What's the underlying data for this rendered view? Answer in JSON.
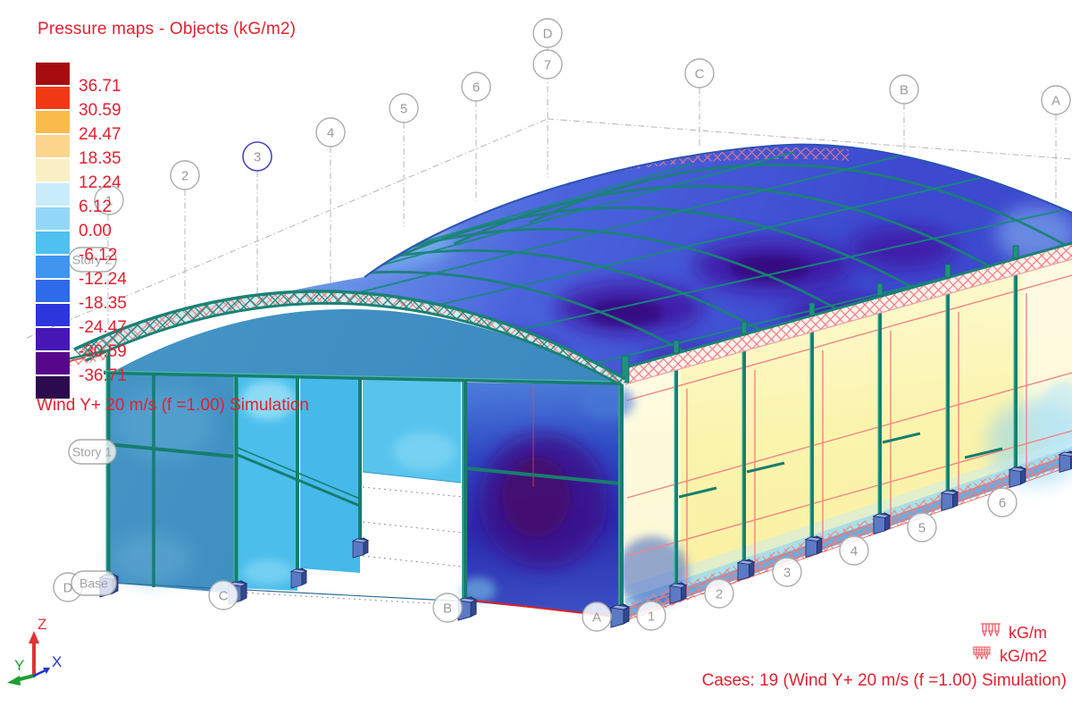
{
  "title": "Pressure maps - Objects (kG/m2)",
  "legend": {
    "values": [
      "36.71",
      "30.59",
      "24.47",
      "18.35",
      "12.24",
      "6.12",
      "0.00",
      "-6.12",
      "-12.24",
      "-18.35",
      "-24.47",
      "-30.59",
      "-36.71"
    ],
    "colors": [
      "#a50d10",
      "#f13a13",
      "#fbbb4c",
      "#fcd58c",
      "#faefc4",
      "#c9ecfa",
      "#93d7f8",
      "#4fc0f2",
      "#3f95ee",
      "#2f6be8",
      "#2d35dd",
      "#4617b5",
      "#57068b",
      "#2c0a4e"
    ]
  },
  "wind_label": "Wind Y+ 20 m/s (f =1.00) Simulation",
  "status": "Cases: 19 (Wind Y+ 20 m/s (f =1.00) Simulation)",
  "grid": {
    "top": [
      "1",
      "2",
      "3",
      "4",
      "5",
      "6",
      "7",
      "D",
      "C",
      "B",
      "A"
    ],
    "bottom": [
      "D",
      "C",
      "B",
      "A",
      "1",
      "2",
      "3",
      "4",
      "5",
      "6"
    ]
  },
  "stories": [
    "Story 2",
    "Story 1",
    "Base"
  ],
  "axis": {
    "x": "X",
    "y": "Y",
    "z": "Z"
  },
  "loads": [
    {
      "icon": "line-load-icon",
      "label": "kG/m"
    },
    {
      "icon": "surface-load-icon",
      "label": "kG/m2"
    }
  ],
  "colors": {
    "annotation_red": "#e32030",
    "frame_teal": "#177d6f",
    "grid_gray": "#b5b5b5",
    "selected_grid_blue": "#4646c4",
    "wall_yellow": "#fbf4ad",
    "wall_blue": "#3e8ec2",
    "panel_cyan": "#4bbeec",
    "suction_navy": "#2a2fae",
    "footing_blue": "#5b79c4"
  }
}
